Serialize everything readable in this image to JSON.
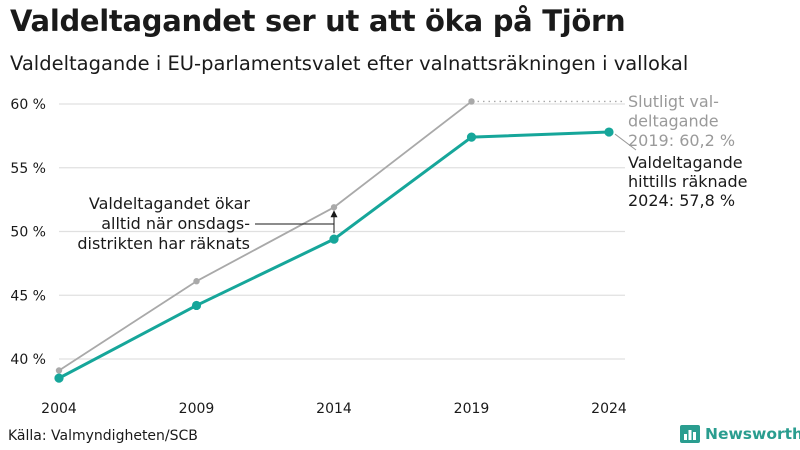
{
  "title": "Valdeltagandet ser ut att öka på Tjörn",
  "subtitle": "Valdeltagande i EU-parlamentsvalet efter valnattsräkningen i vallokal",
  "source": "Källa: Valmyndigheten/SCB",
  "brand": {
    "name": "Newsworthy",
    "icon": "bar-chart-logo-icon"
  },
  "colors": {
    "current": "#16a69a",
    "final": "#a9a9a9",
    "grid": "#e0e0e0",
    "text": "#1a1a1a",
    "brand": "#2a9d8f"
  },
  "chart_data": {
    "type": "line",
    "x": [
      2004,
      2009,
      2014,
      2019,
      2024
    ],
    "xlabel": "",
    "ylabel": "",
    "ylim": [
      38,
      61
    ],
    "y_ticks": [
      40,
      45,
      50,
      55,
      60
    ],
    "y_tick_labels": [
      "40 %",
      "45 %",
      "50 %",
      "55 %",
      "60 %"
    ],
    "x_tick_labels": [
      "2004",
      "2009",
      "2014",
      "2019",
      "2024"
    ],
    "grid": true,
    "series": [
      {
        "name": "Slutligt valdeltagande",
        "x": [
          2004,
          2009,
          2014,
          2019
        ],
        "values": [
          39.1,
          46.1,
          51.9,
          60.2
        ]
      },
      {
        "name": "Valdeltagande hittills räknade",
        "x": [
          2004,
          2009,
          2014,
          2019,
          2024
        ],
        "values": [
          38.5,
          44.2,
          49.4,
          57.4,
          57.8
        ]
      }
    ],
    "annotations": {
      "final_label": [
        "Slutligt val-",
        "deltagande",
        "2019: 60,2 %"
      ],
      "current_label": [
        "Valdeltagande",
        "hittills räknade",
        "2024: 57,8 %"
      ],
      "note": [
        "Valdeltagandet ökar",
        "alltid när onsdags-",
        "distrikten har räknats"
      ]
    }
  }
}
